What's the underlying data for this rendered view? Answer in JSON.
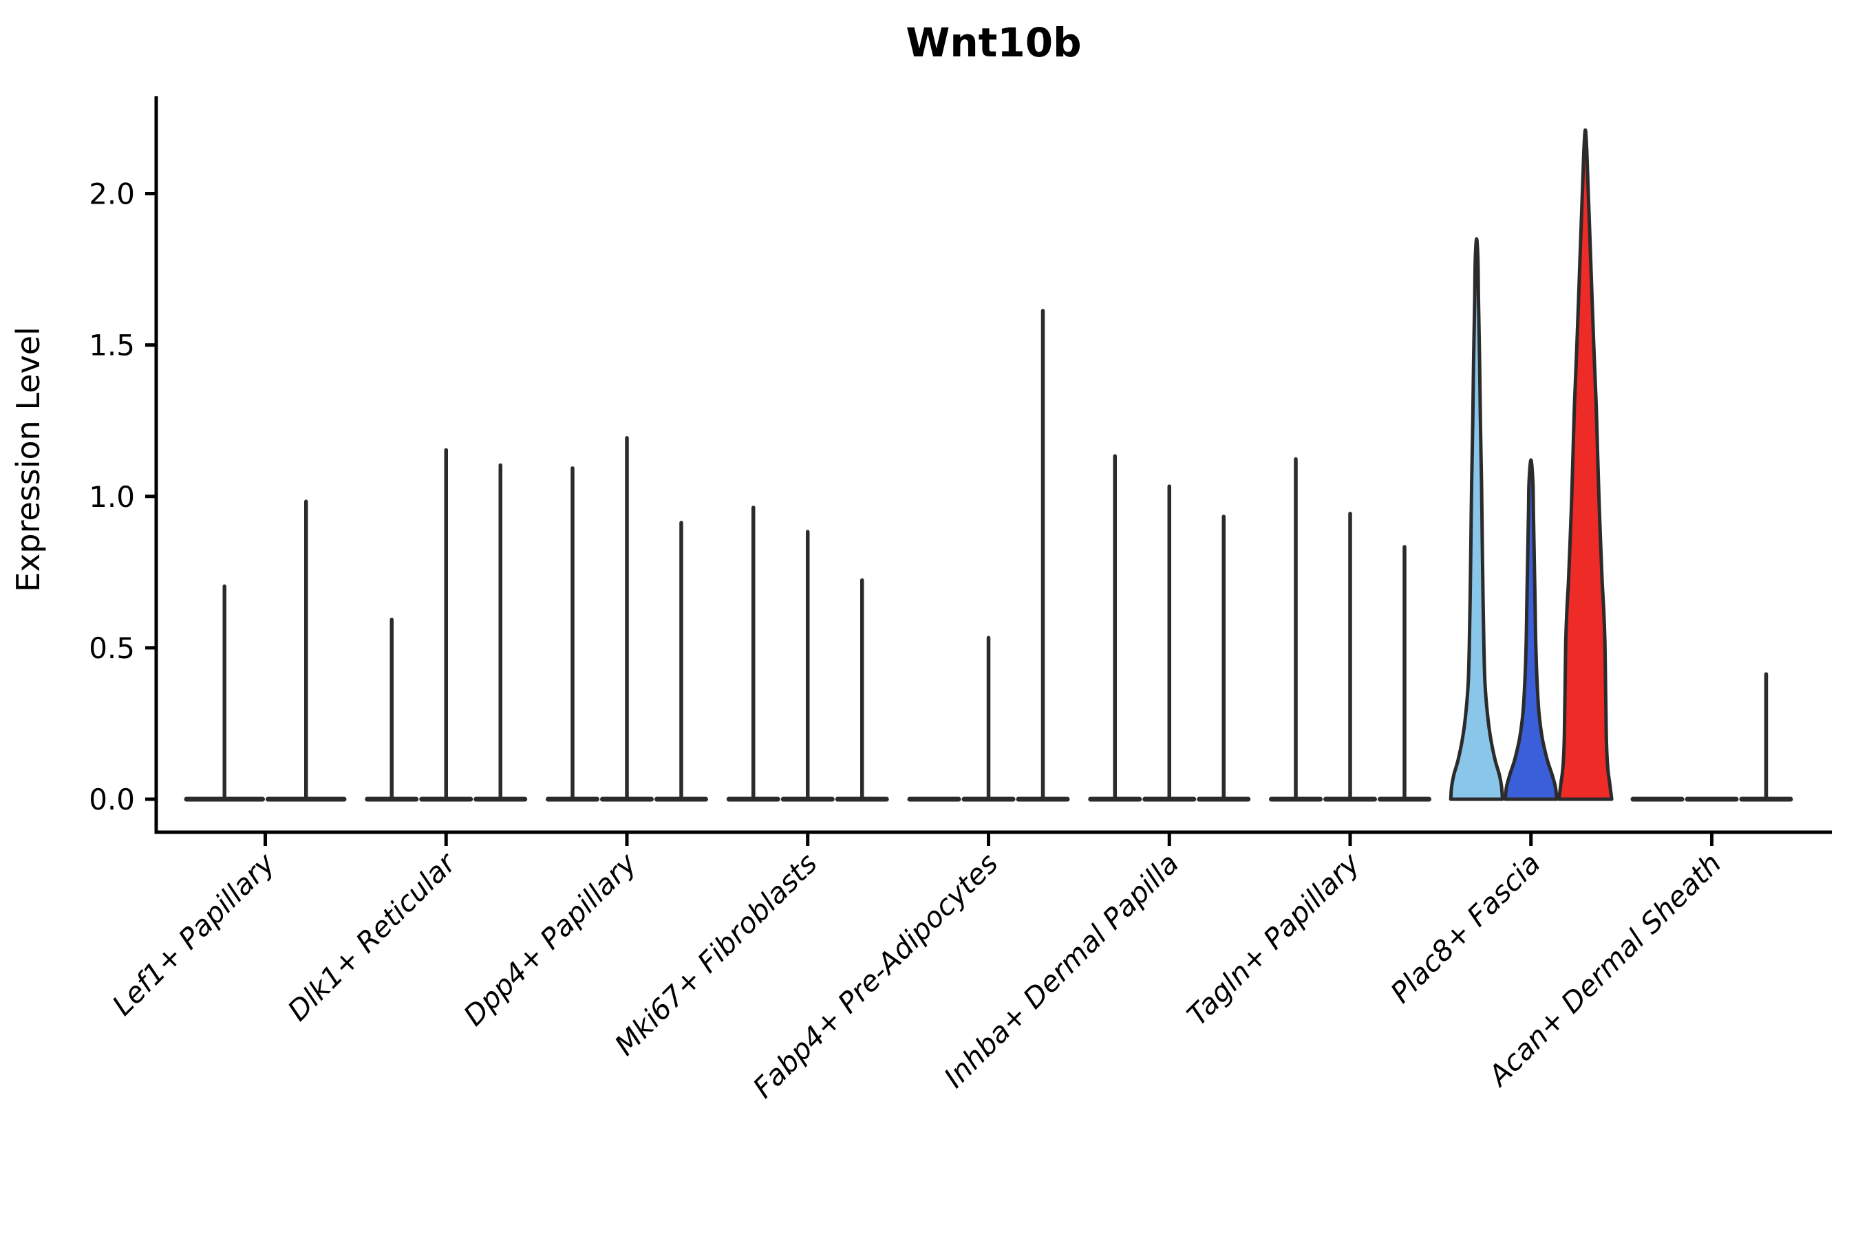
{
  "chart_data": {
    "type": "violin",
    "title": "Wnt10b",
    "xlabel": "",
    "ylabel": "Expression Level",
    "ytick_labels": [
      "0.0",
      "0.5",
      "1.0",
      "1.5",
      "2.0"
    ],
    "ytick_values": [
      0,
      0.5,
      1.0,
      1.5,
      2.0
    ],
    "ylim": [
      -0.11,
      2.32
    ],
    "grid": false,
    "legend": "none",
    "categories": [
      "Lef1+ Papillary",
      "Dlk1+ Reticular",
      "Dpp4+ Papillary",
      "Mki67+ Fibroblasts",
      "Fabp4+ Pre-Adipocytes",
      "Inhba+ Dermal Papilla",
      "Tagln+ Papillary",
      "Plac8+ Fascia",
      "Acan+ Dermal Sheath"
    ],
    "violins": [
      {
        "category": "Lef1+ Papillary",
        "series": [
          {
            "max": 0.71,
            "style": "spike"
          },
          {
            "max": 0.99,
            "style": "spike"
          }
        ]
      },
      {
        "category": "Dlk1+ Reticular",
        "series": [
          {
            "max": 0.6,
            "style": "spike"
          },
          {
            "max": 1.16,
            "style": "spike"
          },
          {
            "max": 1.11,
            "style": "spike"
          }
        ]
      },
      {
        "category": "Dpp4+ Papillary",
        "series": [
          {
            "max": 1.1,
            "style": "spike"
          },
          {
            "max": 1.2,
            "style": "spike"
          },
          {
            "max": 0.92,
            "style": "spike"
          }
        ]
      },
      {
        "category": "Mki67+ Fibroblasts",
        "series": [
          {
            "max": 0.97,
            "style": "spike"
          },
          {
            "max": 0.89,
            "style": "spike"
          },
          {
            "max": 0.73,
            "style": "spike"
          }
        ]
      },
      {
        "category": "Fabp4+ Pre-Adipocytes",
        "series": [
          {
            "max": 0,
            "style": "flat"
          },
          {
            "max": 0.54,
            "style": "spike"
          },
          {
            "max": 1.62,
            "style": "spike"
          }
        ]
      },
      {
        "category": "Inhba+ Dermal Papilla",
        "series": [
          {
            "max": 1.14,
            "style": "spike"
          },
          {
            "max": 1.04,
            "style": "spike"
          },
          {
            "max": 0.94,
            "style": "spike"
          }
        ]
      },
      {
        "category": "Tagln+ Papillary",
        "series": [
          {
            "max": 1.13,
            "style": "spike"
          },
          {
            "max": 0.95,
            "style": "spike"
          },
          {
            "max": 0.84,
            "style": "spike"
          }
        ]
      },
      {
        "category": "Plac8+ Fascia",
        "series": [
          {
            "max": 1.85,
            "style": "shaped",
            "color": "#8AC6E9",
            "profile": [
              [
                0,
                0.95
              ],
              [
                0.04,
                0.92
              ],
              [
                0.08,
                0.84
              ],
              [
                0.13,
                0.68
              ],
              [
                0.2,
                0.52
              ],
              [
                0.28,
                0.4
              ],
              [
                0.38,
                0.31
              ],
              [
                0.5,
                0.27
              ],
              [
                0.65,
                0.24
              ],
              [
                0.85,
                0.21
              ],
              [
                1.05,
                0.18
              ],
              [
                1.25,
                0.14
              ],
              [
                1.45,
                0.11
              ],
              [
                1.65,
                0.07
              ],
              [
                1.78,
                0.05
              ],
              [
                1.85,
                0.02
              ]
            ]
          },
          {
            "max": 1.12,
            "style": "shaped",
            "color": "#3B5FD9",
            "profile": [
              [
                0,
                0.95
              ],
              [
                0.04,
                0.9
              ],
              [
                0.08,
                0.78
              ],
              [
                0.13,
                0.6
              ],
              [
                0.2,
                0.42
              ],
              [
                0.28,
                0.3
              ],
              [
                0.38,
                0.23
              ],
              [
                0.5,
                0.18
              ],
              [
                0.65,
                0.15
              ],
              [
                0.8,
                0.12
              ],
              [
                0.95,
                0.09
              ],
              [
                1.05,
                0.07
              ],
              [
                1.12,
                0.02
              ]
            ]
          },
          {
            "max": 2.21,
            "style": "shaped",
            "color": "#EE2B26",
            "profile": [
              [
                0,
                0.97
              ],
              [
                0.05,
                0.9
              ],
              [
                0.1,
                0.83
              ],
              [
                0.18,
                0.78
              ],
              [
                0.28,
                0.76
              ],
              [
                0.4,
                0.74
              ],
              [
                0.52,
                0.72
              ],
              [
                0.62,
                0.68
              ],
              [
                0.72,
                0.62
              ],
              [
                0.85,
                0.56
              ],
              [
                1.0,
                0.5
              ],
              [
                1.15,
                0.45
              ],
              [
                1.3,
                0.4
              ],
              [
                1.5,
                0.31
              ],
              [
                1.7,
                0.23
              ],
              [
                1.9,
                0.15
              ],
              [
                2.05,
                0.09
              ],
              [
                2.15,
                0.05
              ],
              [
                2.21,
                0.02
              ]
            ]
          }
        ]
      },
      {
        "category": "Acan+ Dermal Sheath",
        "series": [
          {
            "max": 0,
            "style": "flat"
          },
          {
            "max": 0,
            "style": "flat"
          },
          {
            "max": 0.42,
            "style": "spike"
          }
        ]
      }
    ],
    "colors": {
      "violin_line": "#2B2B2B",
      "spike_fill": "#2B2B2B",
      "axis": "#000000",
      "background": "#FFFFFF",
      "fascia_light_blue": "#8AC6E9",
      "fascia_blue": "#3B5FD9",
      "fascia_red": "#EE2B26"
    }
  }
}
